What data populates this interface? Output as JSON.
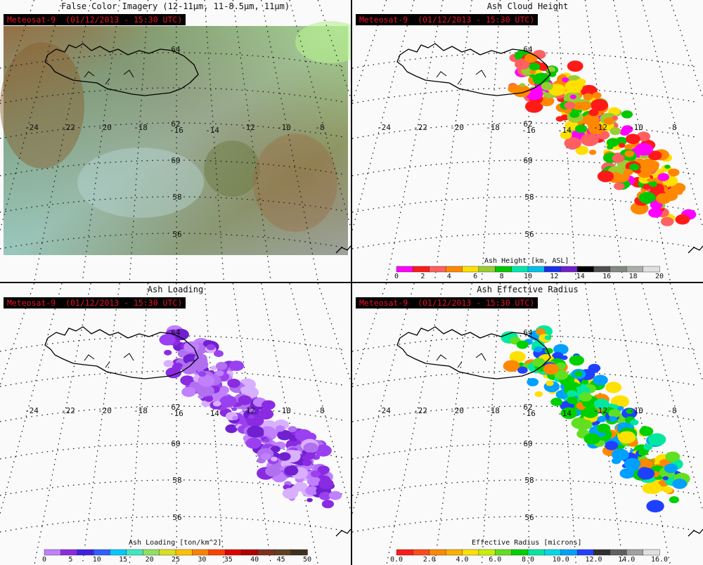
{
  "badge": "Meteosat-9  (01/12/2013 - 15:30 UTC)",
  "panels": [
    {
      "title": "False Color Imagery (12-11μm, 11-8.5μm, 11μm)"
    },
    {
      "title": "Ash Cloud Height"
    },
    {
      "title": "Ash Loading"
    },
    {
      "title": "Ash Effective Radius"
    }
  ],
  "map": {
    "lon_labels": [
      "-24",
      "-22",
      "-20",
      "-18",
      "-16",
      "-14",
      "-12",
      "-10",
      "-8"
    ],
    "lat_labels": [
      "64",
      "62",
      "60",
      "58",
      "56"
    ]
  },
  "colorbars": {
    "height": {
      "title": "Ash Height [km, ASL]",
      "ticks": [
        "0",
        "2",
        "4",
        "6",
        "8",
        "10",
        "12",
        "14",
        "16",
        "18",
        "20"
      ],
      "colors": [
        "#ff00ff",
        "#ff1a1a",
        "#ff6060",
        "#ff8800",
        "#ffe000",
        "#9acd32",
        "#00c800",
        "#00e8b0",
        "#00c0e8",
        "#1830e8",
        "#7020c8",
        "#000000",
        "#505050",
        "#808a80",
        "#a8b0a8",
        "#e0e0e0"
      ]
    },
    "loading": {
      "title": "Ash Loading [ton/km^2]",
      "ticks": [
        "0",
        "5",
        "10",
        "15",
        "20",
        "25",
        "30",
        "35",
        "40",
        "45",
        "50"
      ],
      "colors": [
        "#c080ff",
        "#8a2be2",
        "#4020e0",
        "#3060ff",
        "#00c8ff",
        "#40e8c0",
        "#90e060",
        "#d8e020",
        "#ffc000",
        "#ff8000",
        "#ff4000",
        "#e00000",
        "#b00000",
        "#803020",
        "#604020",
        "#403020"
      ]
    },
    "radius": {
      "title": "Effective Radius [microns]",
      "ticks": [
        "0.0",
        "2.0",
        "4.0",
        "6.0",
        "8.0",
        "10.0",
        "12.0",
        "14.0",
        "16.0"
      ],
      "colors": [
        "#ff1a1a",
        "#ff4a1a",
        "#ff8800",
        "#ffb000",
        "#ffe000",
        "#c8f000",
        "#60e020",
        "#00d000",
        "#00e8a0",
        "#00d8e8",
        "#00a0ff",
        "#2040ff",
        "#303030",
        "#606060",
        "#a0a0a0",
        "#e0e0e0"
      ]
    }
  },
  "colors": {
    "badge_bg": "#000000",
    "badge_text": "#e8142a",
    "grid": "#111111",
    "coast": "#000000"
  }
}
